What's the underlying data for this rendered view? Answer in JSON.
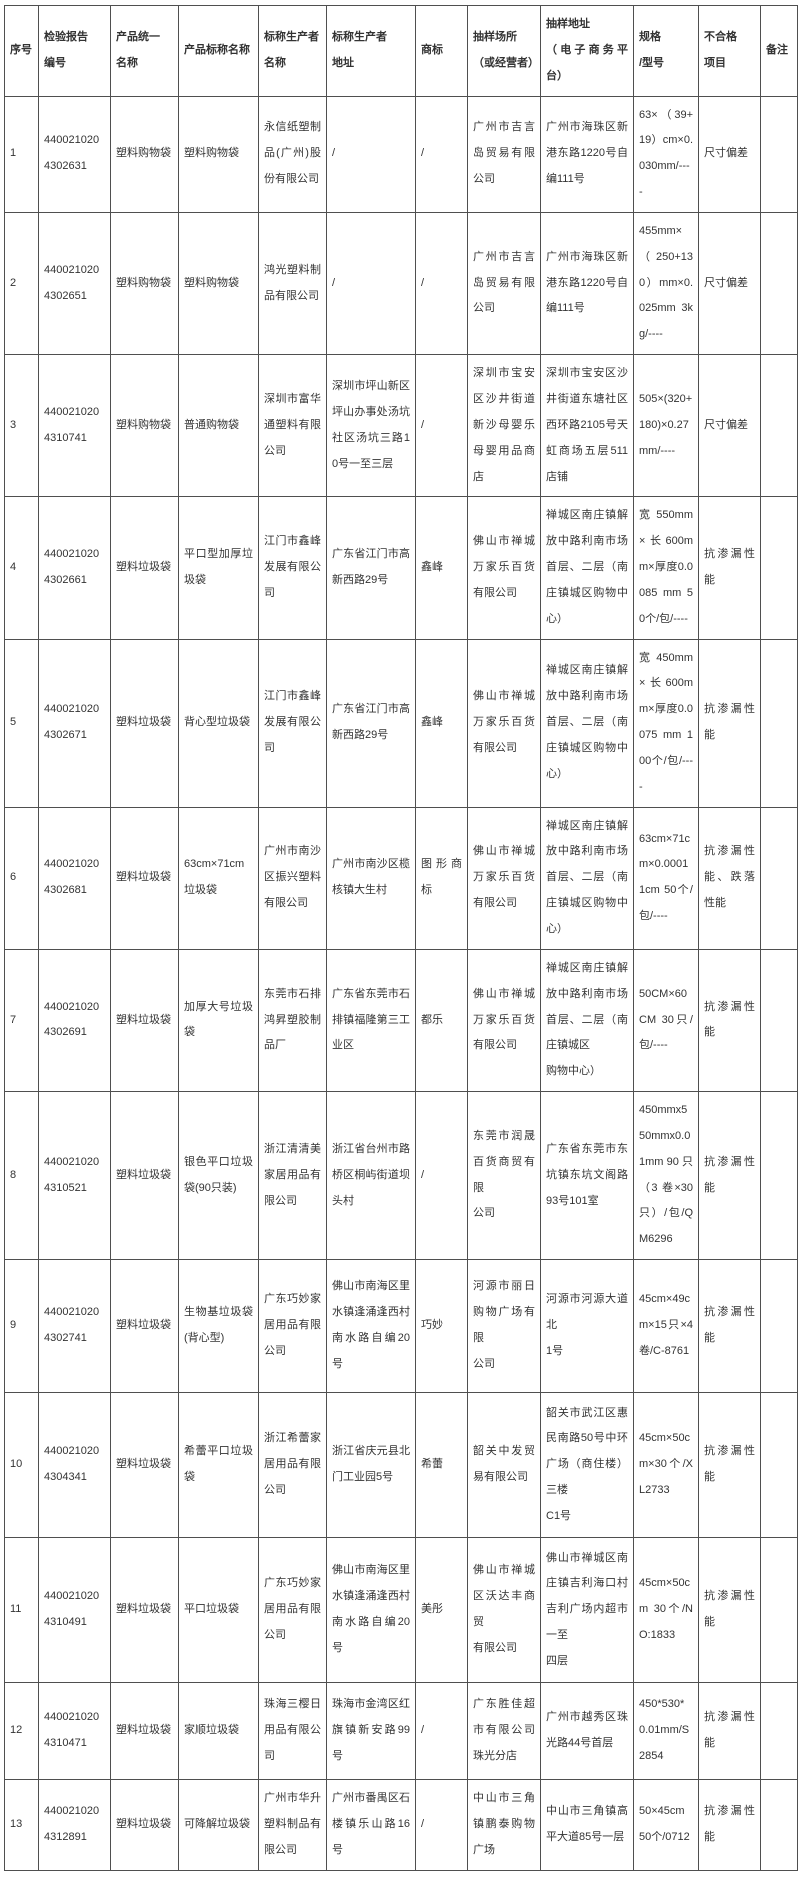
{
  "colors": {
    "border": "#4f4f4f",
    "text": "#333333",
    "background": "#ffffff"
  },
  "table": {
    "columns": [
      {
        "key": "seq",
        "label": "序号"
      },
      {
        "key": "report",
        "label": "检验报告\n编号"
      },
      {
        "key": "unified",
        "label": "产品统一\n名称"
      },
      {
        "key": "nominal",
        "label": "产品标称名称"
      },
      {
        "key": "producer",
        "label": "标称生产者\n名称"
      },
      {
        "key": "paddr",
        "label": "标称生产者\n地址"
      },
      {
        "key": "tm",
        "label": "商标"
      },
      {
        "key": "place",
        "label": "抽样场所\n（或经营者）"
      },
      {
        "key": "addr",
        "label": "抽样地址\n（电子商务平台）"
      },
      {
        "key": "spec",
        "label": "规格\n/型号"
      },
      {
        "key": "items",
        "label": "不合格\n项目"
      },
      {
        "key": "remark",
        "label": "备注"
      }
    ],
    "rows": [
      {
        "seq": "1",
        "report": "440021020\n4302631",
        "unified": "塑料购物袋",
        "nominal": "塑料购物袋",
        "producer": "永信纸塑制品(广州)股份有限公司",
        "paddr": "/",
        "tm": "/",
        "place": "广州市吉言岛贸易有限公司",
        "addr": "广州市海珠区新港东路1220号自编111号",
        "spec": "63×（39+19）cm×0.030mm/----",
        "items": "尺寸偏差",
        "remark": ""
      },
      {
        "seq": "2",
        "report": "440021020\n4302651",
        "unified": "塑料购物袋",
        "nominal": "塑料购物袋",
        "producer": "鸿光塑料制品有限公司",
        "paddr": "/",
        "tm": "/",
        "place": "广州市吉言岛贸易有限公司",
        "addr": "广州市海珠区新港东路1220号自编111号",
        "spec": "455mm×（250+130）mm×0.025mm 3kg/----",
        "items": "尺寸偏差",
        "remark": ""
      },
      {
        "seq": "3",
        "report": "440021020\n4310741",
        "unified": "塑料购物袋",
        "nominal": "普通购物袋",
        "producer": "深圳市富华通塑料有限公司",
        "paddr": "深圳市坪山新区坪山办事处汤坑社区汤坑三路10号一至三层",
        "tm": "/",
        "place": "深圳市宝安区沙井街道新沙母婴乐母婴用品商店",
        "addr": "深圳市宝安区沙井街道东塘社区西环路2105号天虹商场五层511店铺",
        "spec": "505×(320+180)×0.27 mm/----",
        "items": "尺寸偏差",
        "remark": ""
      },
      {
        "seq": "4",
        "report": "440021020\n4302661",
        "unified": "塑料垃圾袋",
        "nominal": "平口型加厚垃圾袋",
        "producer": "江门市鑫峰发展有限公司",
        "paddr": "广东省江门市高新西路29号",
        "tm": "鑫峰",
        "place": "佛山市禅城万家乐百货有限公司",
        "addr": "禅城区南庄镇解放中路利南市场首层、二层（南庄镇城区购物中心）",
        "spec": "宽550mm×长600mm×厚度0.0085 mm 50个/包/----",
        "items": "抗渗漏性能",
        "remark": ""
      },
      {
        "seq": "5",
        "report": "440021020\n4302671",
        "unified": "塑料垃圾袋",
        "nominal": "背心型垃圾袋",
        "producer": "江门市鑫峰发展有限公司",
        "paddr": "广东省江门市高新西路29号",
        "tm": "鑫峰",
        "place": "佛山市禅城万家乐百货有限公司",
        "addr": "禅城区南庄镇解放中路利南市场首层、二层（南庄镇城区购物中心）",
        "spec": "宽450mm×长600mm×厚度0.0075 mm 100个/包/----",
        "items": "抗渗漏性能",
        "remark": ""
      },
      {
        "seq": "6",
        "report": "440021020\n4302681",
        "unified": "塑料垃圾袋",
        "nominal": "63cm×71cm垃圾袋",
        "producer": "广州市南沙区振兴塑料有限公司",
        "paddr": "广州市南沙区榄核镇大生村",
        "tm": "图形商标",
        "place": "佛山市禅城万家乐百货有限公司",
        "addr": "禅城区南庄镇解放中路利南市场首层、二层（南庄镇城区购物中心）",
        "spec": "63cm×71cm×0.00011cm 50个/包/----",
        "items": "抗渗漏性能、跌落性能",
        "remark": ""
      },
      {
        "seq": "7",
        "report": "440021020\n4302691",
        "unified": "塑料垃圾袋",
        "nominal": "加厚大号垃圾袋",
        "producer": "东莞市石排鸿昇塑胶制品厂",
        "paddr": "广东省东莞市石排镇福隆第三工业区",
        "tm": "都乐",
        "place": "佛山市禅城万家乐百货有限公司",
        "addr": "禅城区南庄镇解放中路利南市场首层、二层（南庄镇城区\n购物中心）",
        "spec": "50CM×60CM 30只/包/----",
        "items": "抗渗漏性能",
        "remark": ""
      },
      {
        "seq": "8",
        "report": "440021020\n4310521",
        "unified": "塑料垃圾袋",
        "nominal": "银色平口垃圾袋(90只装)",
        "producer": "浙江清清美家居用品有限公司",
        "paddr": "浙江省台州市路桥区桐屿街道坝头村",
        "tm": "/",
        "place": "东莞市润晟百货商贸有限\n公司",
        "addr": "广东省东莞市东坑镇东坑文阁路93号101室",
        "spec": "450mmx550mmx0.01mm 90 只（3 卷×30只）/包/QM6296",
        "items": "抗渗漏性能",
        "remark": ""
      },
      {
        "seq": "9",
        "report": "440021020\n4302741",
        "unified": "塑料垃圾袋",
        "nominal": "生物基垃圾袋(背心型)",
        "producer": "广东巧妙家居用品有限公司",
        "paddr": "佛山市南海区里水镇逢涌逢西村南水路自编20号",
        "tm": "巧妙",
        "place": "河源市丽日购物广场有限\n公司",
        "addr": "河源市河源大道北\n1号",
        "spec": "45cm×49cm×15只×4卷/C-8761",
        "items": "抗渗漏性能",
        "remark": ""
      },
      {
        "seq": "10",
        "report": "440021020\n4304341",
        "unified": "塑料垃圾袋",
        "nominal": "希蕾平口垃圾袋",
        "producer": "浙江希蕾家居用品有限公司",
        "paddr": "浙江省庆元县北门工业园5号",
        "tm": "希蕾",
        "place": "韶关中发贸易有限公司",
        "addr": "韶关市武江区惠民南路50号中环广场（商住楼）三楼\nC1号",
        "spec": "45cm×50cm×30个/XL2733",
        "items": "抗渗漏性能",
        "remark": ""
      },
      {
        "seq": "11",
        "report": "440021020\n4310491",
        "unified": "塑料垃圾袋",
        "nominal": "平口垃圾袋",
        "producer": "广东巧妙家居用品有限公司",
        "paddr": "佛山市南海区里水镇逢涌逢西村南水路自编20号",
        "tm": "美彤",
        "place": "佛山市禅城区沃达丰商贸\n有限公司",
        "addr": "佛山市禅城区南庄镇吉利海口村吉利广场内超市一至\n四层",
        "spec": "45cm×50cm 30个/NO:1833",
        "items": "抗渗漏性能",
        "remark": ""
      },
      {
        "seq": "12",
        "report": "440021020\n4310471",
        "unified": "塑料垃圾袋",
        "nominal": "家顺垃圾袋",
        "producer": "珠海三樱日用品有限公司",
        "paddr": "珠海市金湾区红旗镇新安路99号",
        "tm": "/",
        "place": "广东胜佳超市有限公司珠光分店",
        "addr": "广州市越秀区珠光路44号首层",
        "spec": "450*530*0.01mm/S2854",
        "items": "抗渗漏性能",
        "remark": ""
      },
      {
        "seq": "13",
        "report": "440021020\n4312891",
        "unified": "塑料垃圾袋",
        "nominal": "可降解垃圾袋",
        "producer": "广州市华升塑料制品有限公司",
        "paddr": "广州市番禺区石楼镇乐山路16号",
        "tm": "/",
        "place": "中山市三角镇鹏泰购物广场",
        "addr": "中山市三角镇高平大道85号一层",
        "spec": "50×45cm 50个/0712",
        "items": "抗渗漏性能",
        "remark": ""
      }
    ]
  }
}
